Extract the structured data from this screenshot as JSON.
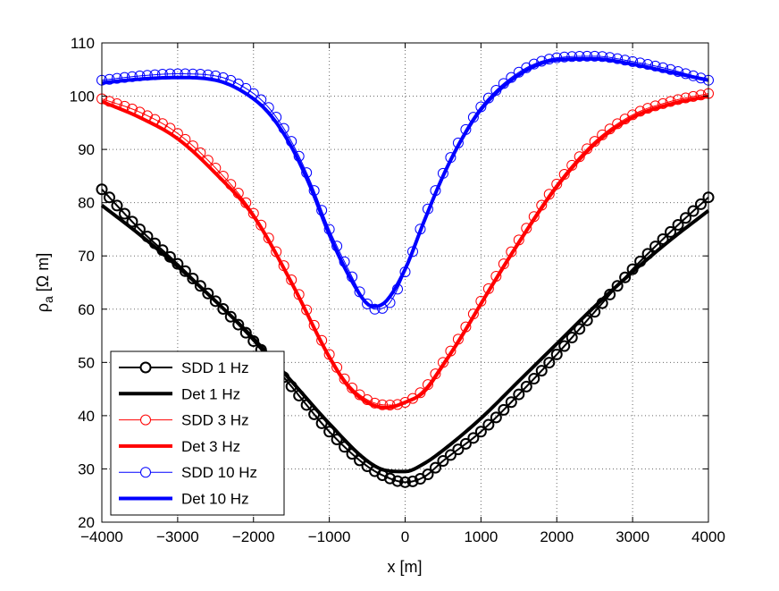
{
  "chart_data": {
    "type": "line",
    "title": "",
    "xlabel": "x [m]",
    "ylabel": "ρa [Ω m]",
    "ylabel_main": "ρ",
    "ylabel_sub": "a",
    "ylabel_unit": " [Ω m]",
    "xlim": [
      -4000,
      4000
    ],
    "ylim": [
      20,
      110
    ],
    "xticks": [
      -4000,
      -3000,
      -2000,
      -1000,
      0,
      1000,
      2000,
      3000,
      4000
    ],
    "xtick_labels": [
      "−4000",
      "−3000",
      "−2000",
      "−1000",
      "0",
      "1000",
      "2000",
      "3000",
      "4000"
    ],
    "yticks": [
      20,
      30,
      40,
      50,
      60,
      70,
      80,
      90,
      100,
      110
    ],
    "ytick_labels": [
      "20",
      "30",
      "40",
      "50",
      "60",
      "70",
      "80",
      "90",
      "100",
      "110"
    ],
    "grid": true,
    "legend_position": "bottom-left",
    "series": [
      {
        "name": "SDD 1 Hz",
        "style": "markers",
        "color": "#000000",
        "x": [
          -4000,
          -3500,
          -3000,
          -2500,
          -2000,
          -1500,
          -1000,
          -500,
          -250,
          0,
          250,
          500,
          1000,
          1500,
          2000,
          2500,
          3000,
          3500,
          4000
        ],
        "y": [
          82.5,
          75,
          68.5,
          61.5,
          54,
          45.5,
          37,
          30.5,
          28.5,
          27.5,
          28.5,
          31.5,
          37,
          44,
          51.5,
          59.5,
          67.5,
          74.5,
          81
        ]
      },
      {
        "name": "Det 1 Hz",
        "style": "line",
        "color": "#000000",
        "x": [
          -4000,
          -3500,
          -3000,
          -2500,
          -2000,
          -1500,
          -1000,
          -500,
          -250,
          0,
          250,
          500,
          1000,
          1500,
          2000,
          2500,
          3000,
          3500,
          4000
        ],
        "y": [
          79.5,
          74,
          68,
          61.5,
          54.5,
          46.5,
          38.5,
          31.5,
          29.7,
          29.5,
          31,
          33.5,
          39.5,
          46.5,
          53.5,
          60.5,
          67,
          73,
          78.5
        ]
      },
      {
        "name": "SDD 3 Hz",
        "style": "markers",
        "color": "#ff0000",
        "x": [
          -4000,
          -3500,
          -3000,
          -2500,
          -2000,
          -1500,
          -1000,
          -750,
          -500,
          -250,
          0,
          250,
          500,
          750,
          1000,
          1500,
          2000,
          2500,
          3000,
          3500,
          4000
        ],
        "y": [
          99.5,
          97,
          93,
          86.5,
          78,
          65.5,
          51.5,
          46,
          43,
          42,
          42.5,
          45,
          50,
          55.5,
          61.5,
          73,
          83.5,
          91.5,
          96.5,
          99,
          100.5
        ]
      },
      {
        "name": "Det 3 Hz",
        "style": "line",
        "color": "#ff0000",
        "x": [
          -4000,
          -3500,
          -3000,
          -2500,
          -2000,
          -1500,
          -1000,
          -750,
          -500,
          -250,
          0,
          250,
          500,
          750,
          1000,
          1500,
          2000,
          2500,
          3000,
          3500,
          4000
        ],
        "y": [
          99,
          96,
          92,
          85.5,
          77.5,
          65,
          51,
          45.5,
          42.5,
          41.5,
          42.5,
          44.5,
          49.5,
          55,
          61,
          72.5,
          83,
          91,
          96,
          98.5,
          100
        ]
      },
      {
        "name": "SDD 10 Hz",
        "style": "markers",
        "color": "#0000ff",
        "x": [
          -4000,
          -3500,
          -3000,
          -2500,
          -2000,
          -1750,
          -1500,
          -1250,
          -1000,
          -750,
          -500,
          -400,
          -250,
          0,
          250,
          500,
          750,
          1000,
          1500,
          2000,
          2500,
          3000,
          3500,
          4000
        ],
        "y": [
          103,
          103.8,
          104.2,
          103.8,
          100.5,
          97,
          91.5,
          84,
          75,
          67.5,
          61,
          60,
          60.5,
          67,
          77,
          85.5,
          92.5,
          98,
          104.5,
          107.2,
          107.5,
          106.5,
          105,
          103
        ]
      },
      {
        "name": "Det 10 Hz",
        "style": "line",
        "color": "#0000ff",
        "x": [
          -4000,
          -3500,
          -3000,
          -2500,
          -2000,
          -1750,
          -1500,
          -1250,
          -1000,
          -750,
          -500,
          -400,
          -250,
          0,
          250,
          500,
          750,
          1000,
          1500,
          2000,
          2500,
          3000,
          3500,
          4000
        ],
        "y": [
          102.5,
          103.2,
          103.5,
          103,
          99.5,
          96,
          90.5,
          83,
          74,
          66.5,
          61,
          60.5,
          61.5,
          67.5,
          76.5,
          85,
          92,
          97.5,
          104,
          106.8,
          107,
          106,
          104.5,
          103
        ]
      }
    ]
  }
}
